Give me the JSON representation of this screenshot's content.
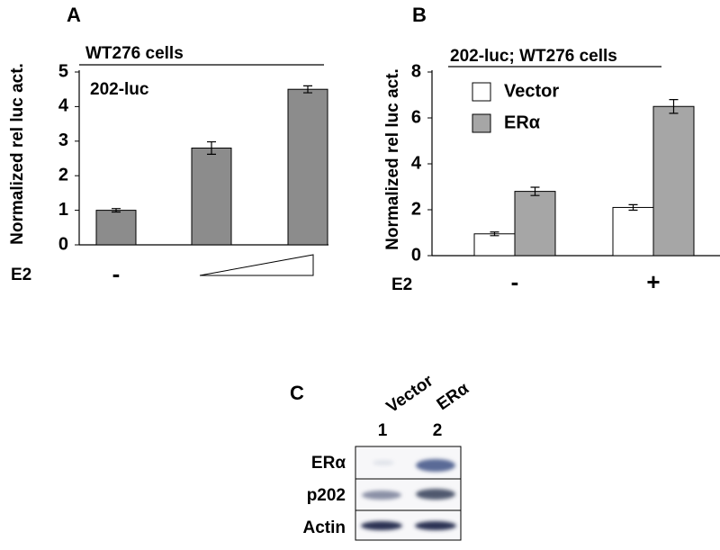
{
  "chart_data": [
    {
      "type": "bar",
      "panel": "A",
      "subtitle": "WT276 cells",
      "annotation": "202-luc",
      "ylabel": "Normalized rel luc act.",
      "xlabel": "E2",
      "categories": [
        "-",
        null,
        null
      ],
      "values": [
        1.0,
        2.8,
        4.5
      ],
      "errors": [
        0.05,
        0.18,
        0.1
      ],
      "color": "#8c8c8c",
      "ylim": [
        0,
        5
      ],
      "yticks": [
        0,
        1,
        2,
        3,
        4,
        5
      ]
    },
    {
      "type": "grouped-bar",
      "panel": "B",
      "subtitle": "202-luc; WT276 cells",
      "ylabel": "Normalized rel luc act.",
      "xlabel": "E2",
      "categories": [
        "-",
        "+"
      ],
      "series": [
        {
          "name": "Vector",
          "color": "#ffffff",
          "values": [
            0.95,
            2.1
          ],
          "errors": [
            0.08,
            0.12
          ]
        },
        {
          "name": "ERα",
          "color": "#a6a6a6",
          "values": [
            2.8,
            6.5
          ],
          "errors": [
            0.18,
            0.3
          ]
        }
      ],
      "ylim": [
        0,
        8
      ],
      "yticks": [
        0,
        2,
        4,
        6,
        8
      ],
      "legend": "upper-left"
    }
  ],
  "panel_c": {
    "panel": "C",
    "lanes": [
      "Vector",
      "ERα"
    ],
    "lane_numbers": [
      "1",
      "2"
    ],
    "rows": [
      "ERα",
      "p202",
      "Actin"
    ]
  }
}
